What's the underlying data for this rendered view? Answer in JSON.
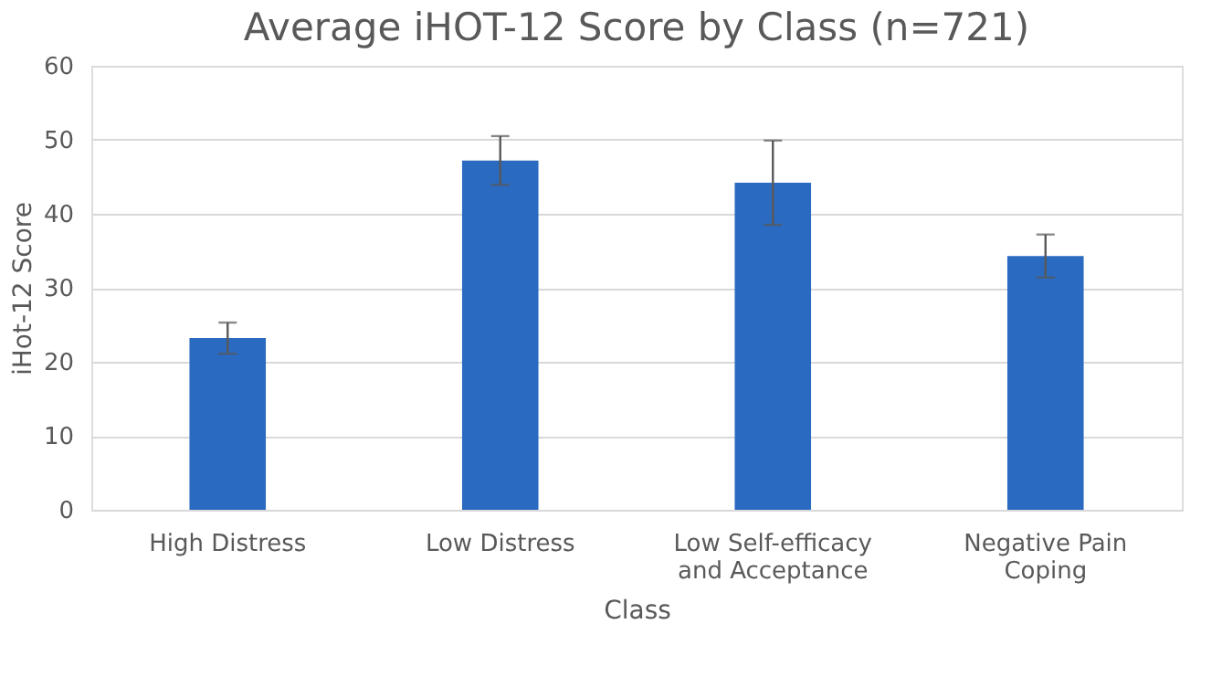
{
  "chart_data": {
    "type": "bar",
    "title": "Average iHOT-12 Score by Class (n=721)",
    "xlabel": "Class",
    "ylabel": "iHot-12 Score",
    "categories": [
      "High Distress",
      "Low Distress",
      "Low Self-efficacy and Acceptance",
      "Negative Pain Coping"
    ],
    "values": [
      23.2,
      47.2,
      44.2,
      34.3
    ],
    "errors": [
      2.1,
      3.3,
      5.7,
      2.9
    ],
    "color": "#2a6ac0",
    "ylim": [
      0,
      60
    ],
    "yticks": [
      0,
      10,
      20,
      30,
      40,
      50,
      60
    ],
    "grid": "y"
  }
}
